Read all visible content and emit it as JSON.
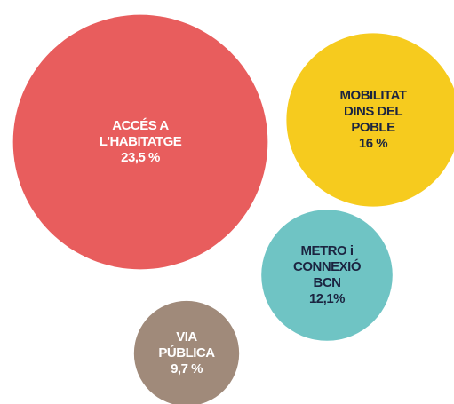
{
  "chart_data": {
    "type": "bubble",
    "categories": [
      [
        "ACCÉS A",
        "L'HABITATGE"
      ],
      [
        "MOBILITAT",
        "DINS DEL",
        "POBLE"
      ],
      [
        "METRO i",
        "CONNEXIÓ",
        "BCN"
      ],
      [
        "VIA",
        "PÚBLICA"
      ]
    ],
    "values": [
      23.5,
      16,
      12.1,
      9.7
    ],
    "value_labels": [
      "23,5 %",
      "16 %",
      "12,1%",
      "9,7 %"
    ],
    "colors": [
      "#e85d5d",
      "#f6cb1e",
      "#6fc4c4",
      "#a08a7a"
    ]
  }
}
